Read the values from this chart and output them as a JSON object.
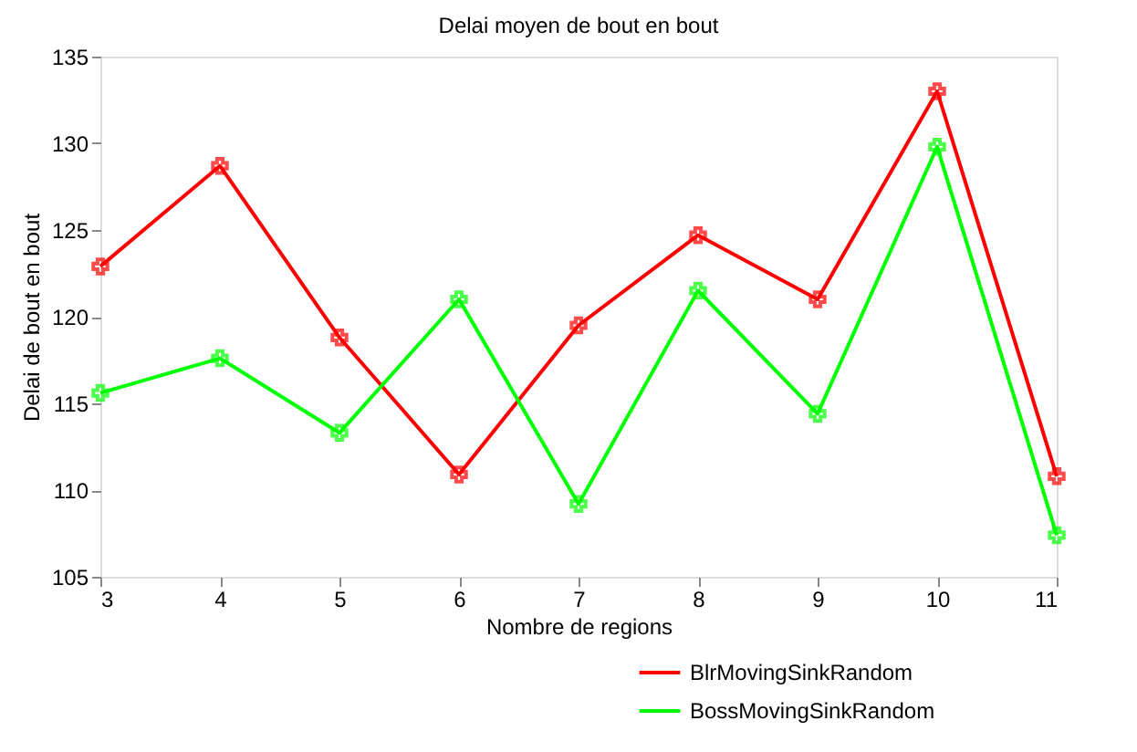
{
  "chart_data": {
    "type": "line",
    "title": "Delai moyen de bout en bout",
    "xlabel": "Nombre de regions",
    "ylabel": "Delai  de bout en bout",
    "x": [
      3,
      4,
      5,
      6,
      7,
      8,
      9,
      10,
      11
    ],
    "series": [
      {
        "name": "BlrMovingSinkRandom",
        "color": "#ff0000",
        "values": [
          122.9,
          128.7,
          118.8,
          110.9,
          119.5,
          124.7,
          121.0,
          133.0,
          110.8
        ]
      },
      {
        "name": "BossMovingSinkRandom",
        "color": "#00ff00",
        "values": [
          115.6,
          117.6,
          113.3,
          121.0,
          109.2,
          121.5,
          114.4,
          129.8,
          107.4
        ]
      }
    ],
    "xlim": [
      3,
      11
    ],
    "xticks": [
      3,
      4,
      5,
      6,
      7,
      8,
      9,
      10,
      11
    ],
    "ylim": [
      105,
      135
    ],
    "yticks": [
      105,
      110,
      115,
      120,
      125,
      130,
      135
    ],
    "grid": false,
    "legend": "bottom right",
    "marker": "cross",
    "line_style": "solid"
  }
}
